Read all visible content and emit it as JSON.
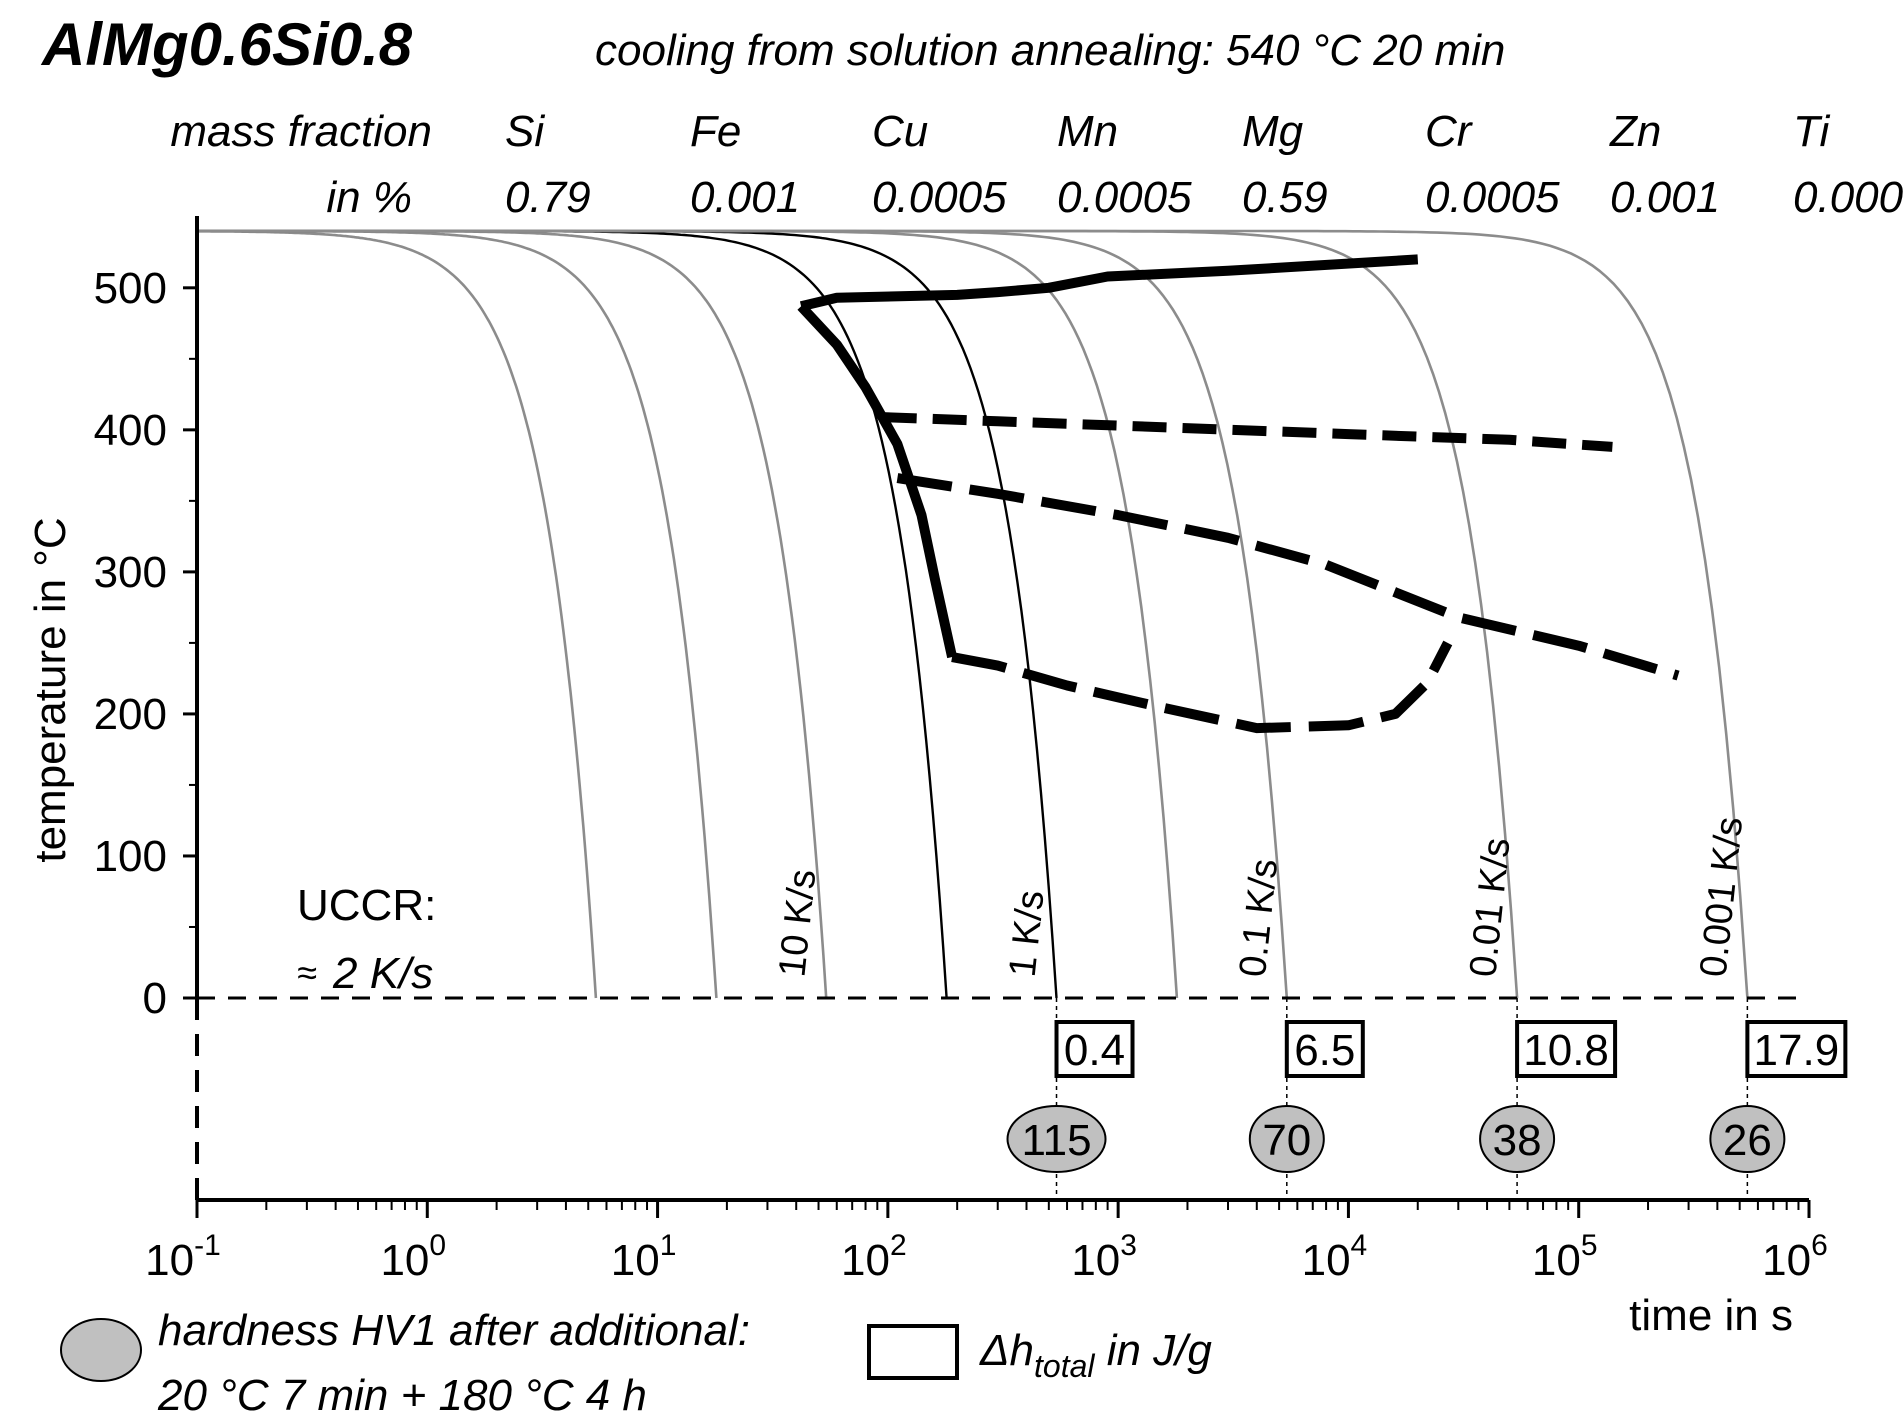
{
  "chart_data": {
    "type": "line",
    "title": "AlMg0.6Si0.8",
    "subtitle": "cooling from solution annealing: 540 °C 20 min",
    "composition": {
      "label_line1": "mass fraction",
      "label_line2": "in %",
      "elements": [
        {
          "name": "Si",
          "value": "0.79"
        },
        {
          "name": "Fe",
          "value": "0.001"
        },
        {
          "name": "Cu",
          "value": "0.0005"
        },
        {
          "name": "Mn",
          "value": "0.0005"
        },
        {
          "name": "Mg",
          "value": "0.59"
        },
        {
          "name": "Cr",
          "value": "0.0005"
        },
        {
          "name": "Zn",
          "value": "0.001"
        },
        {
          "name": "Ti",
          "value": "0.000"
        }
      ]
    },
    "xlabel": "time in s",
    "ylabel": "temperature in °C",
    "xscale": "log",
    "xlim": [
      0.1,
      1000000
    ],
    "ylim": [
      0,
      540
    ],
    "x_ticks": [
      {
        "value": 0.1,
        "base": "10",
        "exp": "-1"
      },
      {
        "value": 1,
        "base": "10",
        "exp": "0"
      },
      {
        "value": 10,
        "base": "10",
        "exp": "1"
      },
      {
        "value": 100,
        "base": "10",
        "exp": "2"
      },
      {
        "value": 1000,
        "base": "10",
        "exp": "3"
      },
      {
        "value": 10000,
        "base": "10",
        "exp": "4"
      },
      {
        "value": 100000,
        "base": "10",
        "exp": "5"
      },
      {
        "value": 1000000,
        "base": "10",
        "exp": "6"
      }
    ],
    "y_ticks": [
      "0",
      "100",
      "200",
      "300",
      "400",
      "500"
    ],
    "cooling_curves": [
      {
        "end_time": 5.4,
        "color": "#8c8c8c"
      },
      {
        "end_time": 18,
        "color": "#8c8c8c"
      },
      {
        "end_time": 54,
        "color": "#8c8c8c",
        "label": "10 K/s"
      },
      {
        "end_time": 180,
        "color": "#000000"
      },
      {
        "end_time": 540,
        "color": "#000000",
        "label": "1 K/s"
      },
      {
        "end_time": 1800,
        "color": "#8c8c8c"
      },
      {
        "end_time": 5400,
        "color": "#8c8c8c",
        "label": "0.1 K/s"
      },
      {
        "end_time": 54000,
        "color": "#8c8c8c",
        "label": "0.01 K/s"
      },
      {
        "end_time": 540000,
        "color": "#8c8c8c",
        "label": "0.001 K/s"
      }
    ],
    "transformation_lines": [
      {
        "name": "high-temperature start",
        "style": "solid",
        "points": [
          [
            42,
            487
          ],
          [
            60,
            493
          ],
          [
            200,
            495
          ],
          [
            300,
            497
          ],
          [
            500,
            500
          ],
          [
            900,
            508
          ],
          [
            3000,
            512
          ],
          [
            20000,
            520
          ]
        ]
      },
      {
        "name": "high-temperature end",
        "style": "solid",
        "points": [
          [
            42,
            487
          ],
          [
            60,
            460
          ],
          [
            80,
            430
          ],
          [
            110,
            390
          ],
          [
            140,
            340
          ],
          [
            160,
            295
          ],
          [
            190,
            240
          ]
        ]
      },
      {
        "name": "intermediate start",
        "style": "dashed",
        "points": [
          [
            95,
            409
          ],
          [
            300,
            406
          ],
          [
            1000,
            403
          ],
          [
            10000,
            397
          ],
          [
            50000,
            393
          ],
          [
            140000,
            388
          ]
        ]
      },
      {
        "name": "intermediate lower",
        "style": "mixed",
        "points": [
          [
            110,
            366
          ],
          [
            300,
            355
          ],
          [
            1000,
            340
          ],
          [
            3000,
            324
          ],
          [
            8000,
            305
          ],
          [
            30000,
            268
          ],
          [
            100000,
            248
          ],
          [
            270000,
            227
          ]
        ]
      },
      {
        "name": "low-temperature",
        "style": "mixed",
        "points": [
          [
            190,
            240
          ],
          [
            300,
            234
          ],
          [
            600,
            220
          ],
          [
            1500,
            205
          ],
          [
            4000,
            190
          ],
          [
            10000,
            192
          ],
          [
            16000,
            200
          ],
          [
            22000,
            222
          ],
          [
            27000,
            250
          ]
        ]
      }
    ],
    "uccr_label": "UCCR:",
    "uccr_value": "2 K/s",
    "uccr_symbol": "≈",
    "enthalpy": [
      {
        "time": 540,
        "value": "0.4"
      },
      {
        "time": 5400,
        "value": "6.5"
      },
      {
        "time": 54000,
        "value": "10.8"
      },
      {
        "time": 540000,
        "value": "17.9"
      }
    ],
    "hardness": [
      {
        "time": 540,
        "value": "115"
      },
      {
        "time": 5400,
        "value": "70"
      },
      {
        "time": 54000,
        "value": "38"
      },
      {
        "time": 540000,
        "value": "26"
      }
    ],
    "legend": {
      "hardness_line1": "hardness HV1 after additional:",
      "hardness_line2": "20 °C 7 min + 180 °C 4 h",
      "enthalpy_prefix": "Δh",
      "enthalpy_sub": "total",
      "enthalpy_suffix": " in J/g"
    },
    "colors": {
      "black": "#000000",
      "gray_curve": "#8c8c8c",
      "ellipse_fill": "#c0c0c0"
    }
  }
}
